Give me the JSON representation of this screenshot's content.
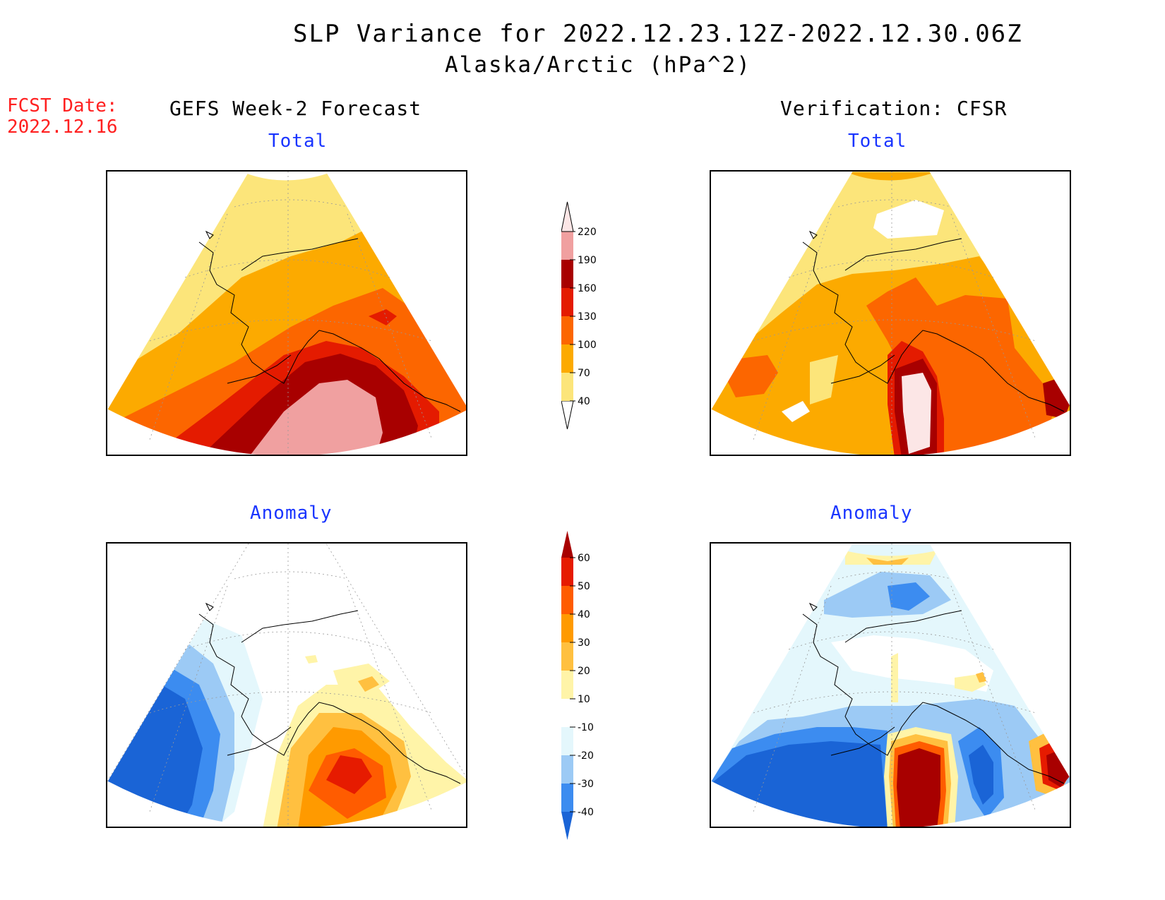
{
  "header": {
    "title_line1": "SLP Variance for 2022.12.23.12Z-2022.12.30.06Z",
    "title_line2": "Alaska/Arctic (hPa^2)",
    "fcst_label": "FCST Date:",
    "fcst_date": "2022.12.16"
  },
  "columns": {
    "left": "GEFS Week-2 Forecast",
    "right": "Verification: CFSR"
  },
  "panels": {
    "total_label": "Total",
    "anomaly_label": "Anomaly"
  },
  "total_colorbar": {
    "levels": [
      "40",
      "70",
      "100",
      "130",
      "160",
      "190",
      "220"
    ],
    "colors": [
      "#fce57a",
      "#fcaa00",
      "#fc6600",
      "#e41b00",
      "#a80000",
      "#f0a0a0",
      "#fce6e6"
    ]
  },
  "anomaly_colorbar": {
    "levels": [
      "-40",
      "-30",
      "-20",
      "-10",
      "10",
      "20",
      "30",
      "40",
      "50",
      "60"
    ],
    "colors": [
      "#1a64d6",
      "#3c8cf0",
      "#9ccaf5",
      "#e4f7fc",
      "#ffffff",
      "#fff4a8",
      "#ffc040",
      "#ff9a00",
      "#ff5c00",
      "#e61b00",
      "#a80000"
    ]
  }
}
